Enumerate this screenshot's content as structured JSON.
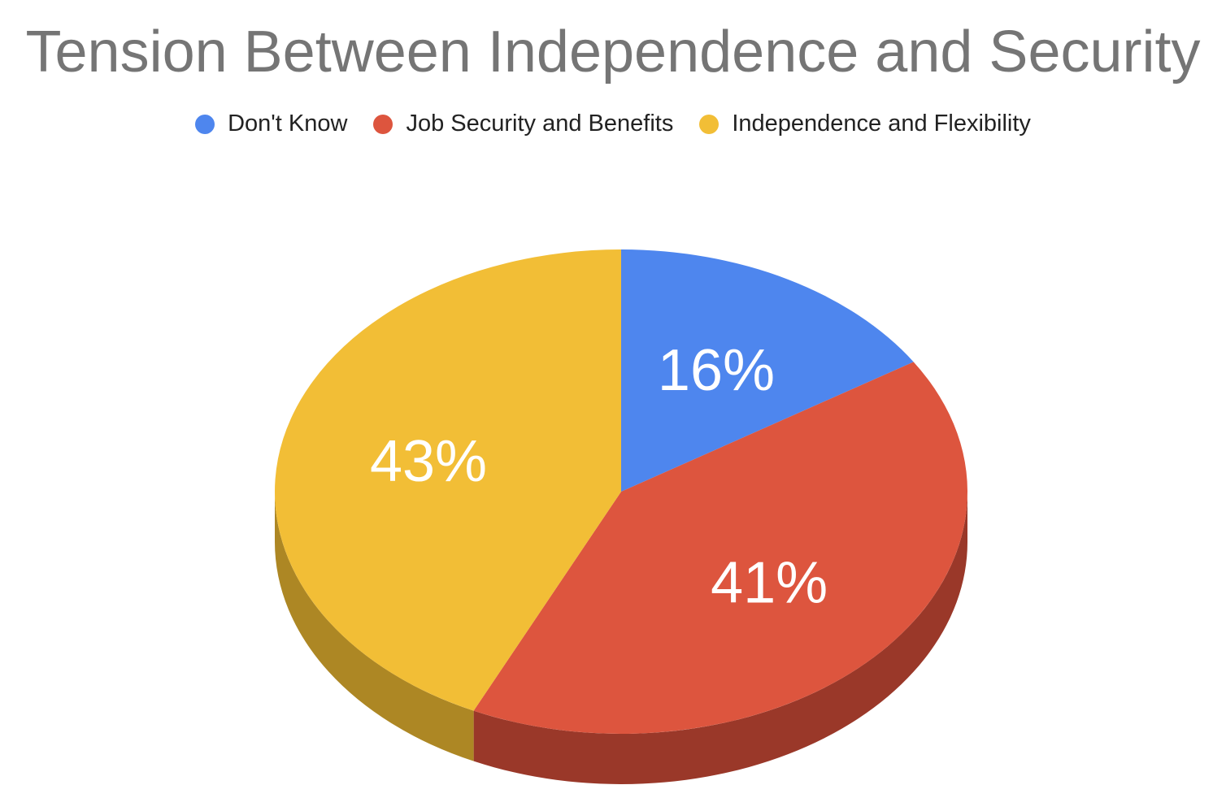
{
  "chart_data": {
    "type": "pie",
    "title": "Tension Between Independence and Security",
    "legend_position": "top",
    "three_d": true,
    "slices": [
      {
        "label": "Don't Know",
        "value": 16,
        "display": "16%",
        "color": "#4e86ee",
        "side_color": "#3a64b3"
      },
      {
        "label": "Job Security and Benefits",
        "value": 41,
        "display": "41%",
        "color": "#dd553e",
        "side_color": "#9a3829"
      },
      {
        "label": "Independence and Flexibility",
        "value": 43,
        "display": "43%",
        "color": "#f2be36",
        "side_color": "#ad8724"
      }
    ]
  }
}
